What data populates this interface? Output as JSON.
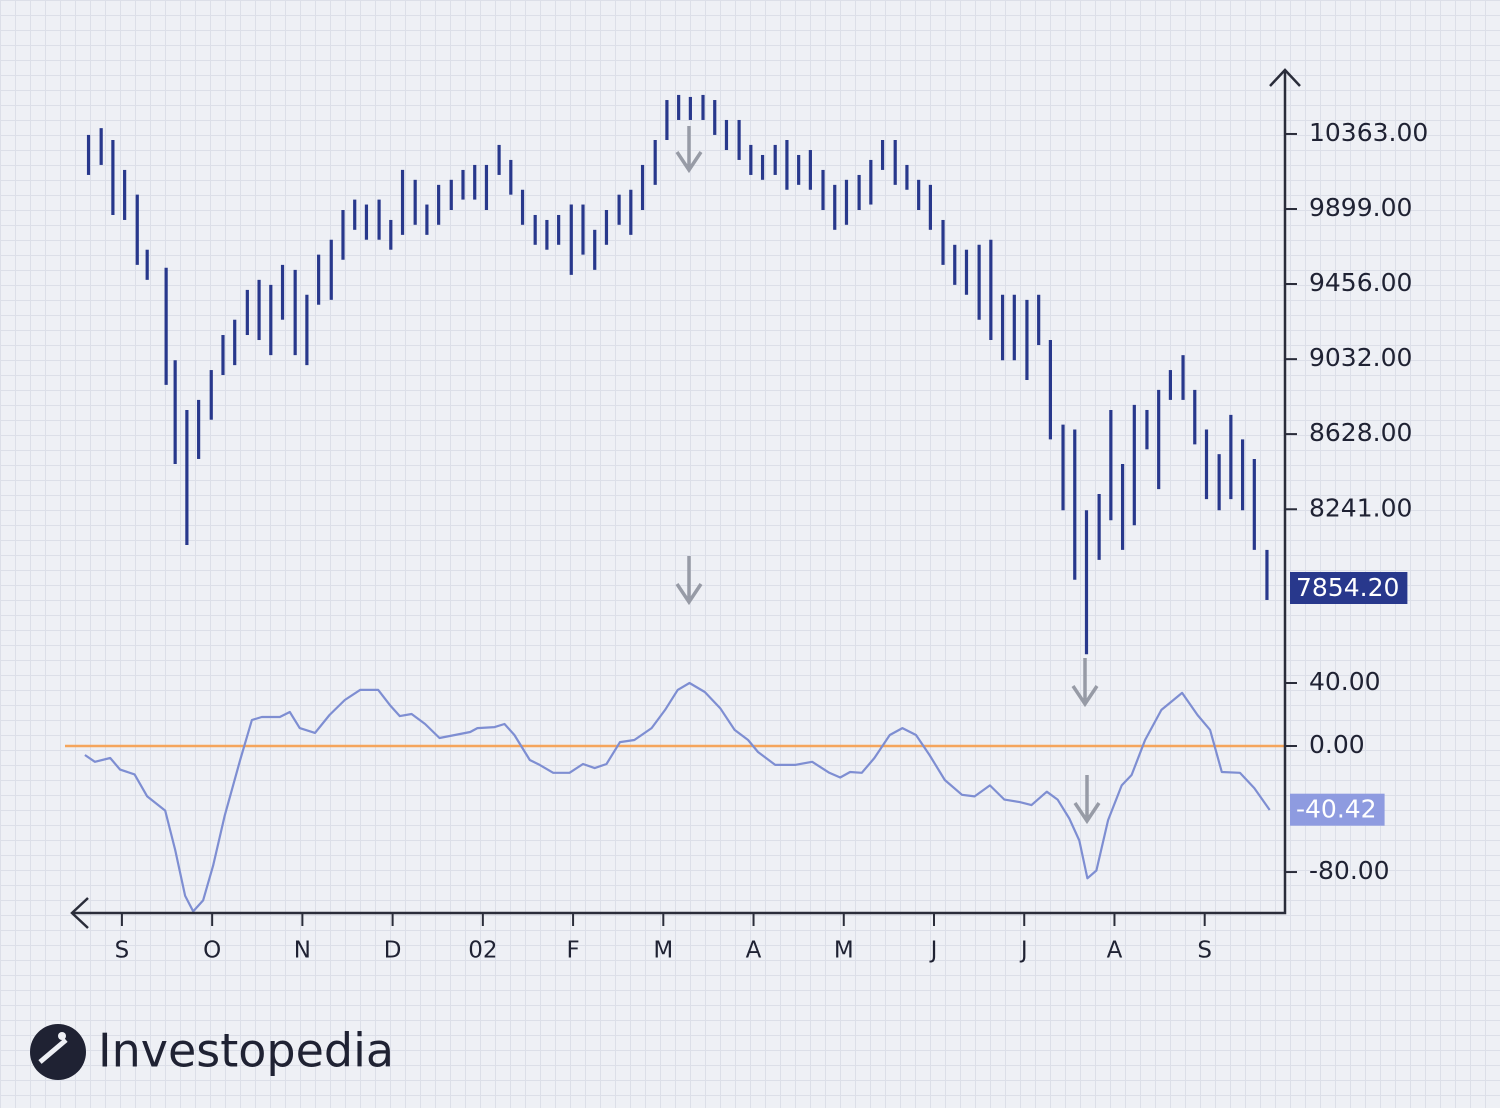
{
  "chart_data": [
    {
      "type": "hilo",
      "log_scale": true,
      "xlim": [
        -0.52,
        12.89
      ],
      "ylim": [
        7521,
        10645
      ],
      "yticks": [
        {
          "value": 10363,
          "label": "10363.00"
        },
        {
          "value": 9899,
          "label": "9899.00"
        },
        {
          "value": 9456,
          "label": "9456.00"
        },
        {
          "value": 9032,
          "label": "9032.00"
        },
        {
          "value": 8628,
          "label": "8628.00"
        },
        {
          "value": 8241,
          "label": "8241.00"
        }
      ],
      "x": [
        -0.37,
        -0.23,
        -0.1,
        0.03,
        0.17,
        0.28,
        0.49,
        0.59,
        0.72,
        0.85,
        0.99,
        1.12,
        1.25,
        1.39,
        1.52,
        1.65,
        1.78,
        1.92,
        2.05,
        2.18,
        2.32,
        2.45,
        2.58,
        2.71,
        2.85,
        2.98,
        3.11,
        3.25,
        3.38,
        3.51,
        3.65,
        3.78,
        3.91,
        4.04,
        4.18,
        4.31,
        4.44,
        4.58,
        4.71,
        4.84,
        4.98,
        5.11,
        5.24,
        5.37,
        5.51,
        5.64,
        5.77,
        5.91,
        6.04,
        6.17,
        6.3,
        6.44,
        6.57,
        6.7,
        6.84,
        6.97,
        7.1,
        7.24,
        7.37,
        7.5,
        7.63,
        7.77,
        7.9,
        8.03,
        8.17,
        8.3,
        8.43,
        8.57,
        8.7,
        8.83,
        8.96,
        9.1,
        9.23,
        9.36,
        9.5,
        9.63,
        9.76,
        9.89,
        10.03,
        10.16,
        10.29,
        10.43,
        10.56,
        10.69,
        10.83,
        10.96,
        11.09,
        11.22,
        11.36,
        11.49,
        11.62,
        11.76,
        11.89,
        12.02,
        12.16,
        12.29,
        12.42,
        12.55,
        12.69
      ],
      "series": [
        {
          "color": "#28388c",
          "high": [
            10357,
            10400,
            10325,
            10138,
            9986,
            9656,
            9550,
            9026,
            8756,
            8810,
            8972,
            9166,
            9252,
            9422,
            9480,
            9451,
            9567,
            9538,
            9394,
            9627,
            9715,
            9893,
            9956,
            9926,
            9956,
            9833,
            10138,
            10077,
            9926,
            10046,
            10077,
            10138,
            10169,
            10169,
            10294,
            10200,
            10016,
            9863,
            9833,
            9863,
            9926,
            9926,
            9774,
            9893,
            9986,
            10016,
            10169,
            10325,
            10580,
            10613,
            10600,
            10613,
            10580,
            10452,
            10452,
            10294,
            10231,
            10294,
            10325,
            10231,
            10262,
            10138,
            10046,
            10077,
            10107,
            10200,
            10325,
            10325,
            10169,
            10077,
            10046,
            9833,
            9685,
            9656,
            9685,
            9715,
            9394,
            9394,
            9365,
            9394,
            9138,
            8678,
            8652,
            8236,
            8318,
            8756,
            8472,
            8783,
            8756,
            8864,
            8972,
            9054,
            8864,
            8652,
            8523,
            8730,
            8600,
            8498,
            8039
          ],
          "low": [
            10107,
            10169,
            9863,
            9833,
            9567,
            9480,
            8891,
            8472,
            8063,
            8498,
            8704,
            8945,
            8999,
            9166,
            9138,
            9054,
            9252,
            9054,
            8999,
            9337,
            9365,
            9597,
            9774,
            9715,
            9715,
            9656,
            9744,
            9804,
            9744,
            9804,
            9893,
            9956,
            9956,
            9893,
            10107,
            9986,
            9804,
            9685,
            9656,
            9685,
            9509,
            9627,
            9538,
            9685,
            9804,
            9744,
            9893,
            10046,
            10325,
            10452,
            10452,
            10452,
            10357,
            10262,
            10200,
            10107,
            10077,
            10107,
            10016,
            10046,
            10016,
            9893,
            9774,
            9804,
            9893,
            9926,
            10138,
            10046,
            10016,
            9893,
            9774,
            9567,
            9451,
            9394,
            9252,
            9138,
            9026,
            9026,
            8918,
            9110,
            8600,
            8236,
            7894,
            7543,
            7990,
            8186,
            8039,
            8161,
            8548,
            8343,
            8810,
            8810,
            8574,
            8292,
            8236,
            8292,
            8236,
            8039,
            7797
          ]
        }
      ],
      "last_price": {
        "value": 7854.2,
        "label": "7854.20",
        "color": "#28388c"
      }
    },
    {
      "type": "line",
      "xlim": [
        -0.52,
        12.89
      ],
      "ylim": [
        -106,
        54.6
      ],
      "xticks": [
        {
          "value": 0,
          "label": "S"
        },
        {
          "value": 1,
          "label": "O"
        },
        {
          "value": 2,
          "label": "N"
        },
        {
          "value": 3,
          "label": "D"
        },
        {
          "value": 4,
          "label": "02"
        },
        {
          "value": 5,
          "label": "F"
        },
        {
          "value": 6,
          "label": "M"
        },
        {
          "value": 7,
          "label": "A"
        },
        {
          "value": 8,
          "label": "M"
        },
        {
          "value": 9,
          "label": "J"
        },
        {
          "value": 10,
          "label": "J"
        },
        {
          "value": 11,
          "label": "A"
        },
        {
          "value": 12,
          "label": "S"
        }
      ],
      "yticks": [
        {
          "value": 40,
          "label": "40.00"
        },
        {
          "value": 0,
          "label": "0.00"
        },
        {
          "value": -80,
          "label": "-80.00"
        }
      ],
      "x": [
        -0.41,
        -0.3,
        -0.13,
        -0.02,
        0.14,
        0.28,
        0.48,
        0.59,
        0.7,
        0.79,
        0.9,
        1.01,
        1.14,
        1.31,
        1.44,
        1.55,
        1.75,
        1.86,
        1.97,
        2.14,
        2.3,
        2.47,
        2.64,
        2.84,
        2.97,
        3.08,
        3.21,
        3.36,
        3.52,
        3.69,
        3.86,
        3.94,
        4.13,
        4.24,
        4.35,
        4.52,
        4.63,
        4.78,
        4.96,
        5.11,
        5.24,
        5.37,
        5.52,
        5.68,
        5.87,
        6.02,
        6.16,
        6.29,
        6.46,
        6.63,
        6.79,
        6.94,
        7.05,
        7.24,
        7.46,
        7.65,
        7.84,
        7.96,
        8.07,
        8.2,
        8.34,
        8.51,
        8.65,
        8.8,
        8.95,
        9.12,
        9.31,
        9.45,
        9.62,
        9.78,
        9.95,
        10.08,
        10.25,
        10.37,
        10.5,
        10.61,
        10.7,
        10.8,
        10.93,
        11.08,
        11.19,
        11.34,
        11.52,
        11.75,
        11.92,
        12.06,
        12.19,
        12.39,
        12.55,
        12.72
      ],
      "series": [
        {
          "color": "#7e8ed2",
          "values": [
            -5.7,
            -10,
            -7.6,
            -15,
            -18,
            -32,
            -41,
            -66,
            -95,
            -105,
            -98,
            -76,
            -44,
            -9,
            16.5,
            18.4,
            18.4,
            21.6,
            11.4,
            8.3,
            19.7,
            29.2,
            35.6,
            35.6,
            26,
            19,
            20.3,
            14,
            5.1,
            7,
            8.9,
            11.4,
            12,
            14,
            7,
            -8.9,
            -12,
            -17,
            -17,
            -11.4,
            -14,
            -11.4,
            2.5,
            3.8,
            11.4,
            22.9,
            35.6,
            40,
            34.3,
            24,
            10.2,
            3.8,
            -3.8,
            -12,
            -12,
            -10,
            -17,
            -20,
            -16.5,
            -17,
            -7.6,
            7,
            11.4,
            7,
            -5.7,
            -21.6,
            -31,
            -32,
            -25,
            -34,
            -35.6,
            -37.5,
            -29,
            -34,
            -46,
            -60,
            -84,
            -79,
            -47,
            -25,
            -18.4,
            3.8,
            22.9,
            33.7,
            19.7,
            10.2,
            -16.5,
            -17,
            -26.7,
            -40.6
          ]
        }
      ],
      "reference_line": {
        "value": 0,
        "color": "#f5a55c"
      },
      "last_value": {
        "value": -40.42,
        "label": "-40.42",
        "color": "#8e9be0"
      }
    }
  ],
  "brand": "Investopedia"
}
